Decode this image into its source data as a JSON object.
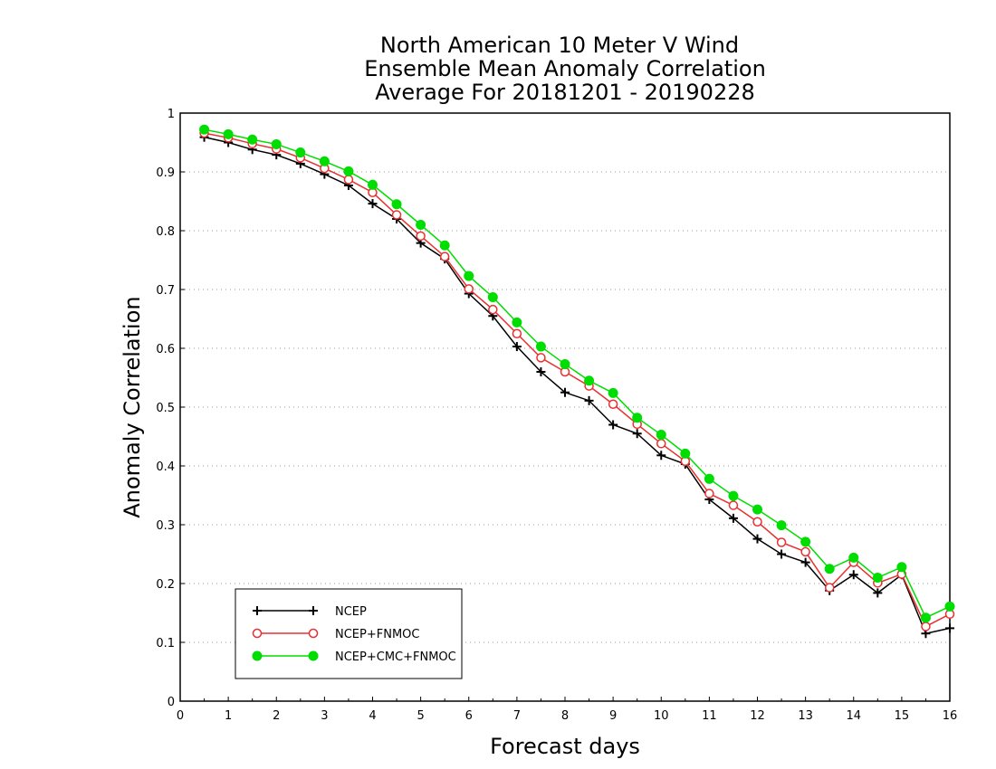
{
  "chart_data": {
    "type": "line",
    "title_lines": [
      "North American 10 Meter V Wind",
      "Ensemble Mean Anomaly Correlation",
      "Average For 20181201 - 20190228"
    ],
    "xlabel": "Forecast days",
    "ylabel": "Anomaly Correlation",
    "xlim": [
      0,
      16
    ],
    "ylim": [
      0,
      1
    ],
    "x_ticks": [
      "0",
      "1",
      "2",
      "3",
      "4",
      "5",
      "6",
      "7",
      "8",
      "9",
      "10",
      "11",
      "12",
      "13",
      "14",
      "15",
      "16"
    ],
    "y_ticks": [
      "0",
      "0.1",
      "0.2",
      "0.3",
      "0.4",
      "0.5",
      "0.6",
      "0.7",
      "0.8",
      "0.9",
      "1"
    ],
    "grid": "horizontal dotted",
    "legend_position": "bottom-left",
    "x": [
      0.5,
      1,
      1.5,
      2,
      2.5,
      3,
      3.5,
      4,
      4.5,
      5,
      5.5,
      6,
      6.5,
      7,
      7.5,
      8,
      8.5,
      9,
      9.5,
      10,
      10.5,
      11,
      11.5,
      12,
      12.5,
      13,
      13.5,
      14,
      14.5,
      15,
      15.5,
      16
    ],
    "series": [
      {
        "name": "NCEP",
        "color": "#000000",
        "marker": "plus",
        "values": [
          0.959,
          0.95,
          0.938,
          0.929,
          0.914,
          0.896,
          0.877,
          0.846,
          0.82,
          0.779,
          0.752,
          0.693,
          0.655,
          0.603,
          0.56,
          0.525,
          0.511,
          0.47,
          0.455,
          0.418,
          0.403,
          0.343,
          0.311,
          0.276,
          0.25,
          0.236,
          0.188,
          0.215,
          0.184,
          0.215,
          0.115,
          0.124
        ]
      },
      {
        "name": "NCEP+FNMOC",
        "color": "#e83030",
        "marker": "open-circle",
        "values": [
          0.966,
          0.958,
          0.948,
          0.939,
          0.924,
          0.906,
          0.887,
          0.865,
          0.827,
          0.791,
          0.756,
          0.701,
          0.666,
          0.625,
          0.584,
          0.56,
          0.536,
          0.505,
          0.471,
          0.438,
          0.408,
          0.353,
          0.333,
          0.305,
          0.27,
          0.254,
          0.193,
          0.236,
          0.201,
          0.216,
          0.127,
          0.148
        ]
      },
      {
        "name": "NCEP+CMC+FNMOC",
        "color": "#00dd00",
        "marker": "filled-circle",
        "values": [
          0.972,
          0.964,
          0.955,
          0.947,
          0.933,
          0.918,
          0.901,
          0.878,
          0.845,
          0.81,
          0.775,
          0.723,
          0.687,
          0.644,
          0.603,
          0.573,
          0.545,
          0.524,
          0.482,
          0.453,
          0.421,
          0.378,
          0.349,
          0.326,
          0.299,
          0.271,
          0.225,
          0.244,
          0.21,
          0.228,
          0.142,
          0.161
        ]
      }
    ]
  }
}
